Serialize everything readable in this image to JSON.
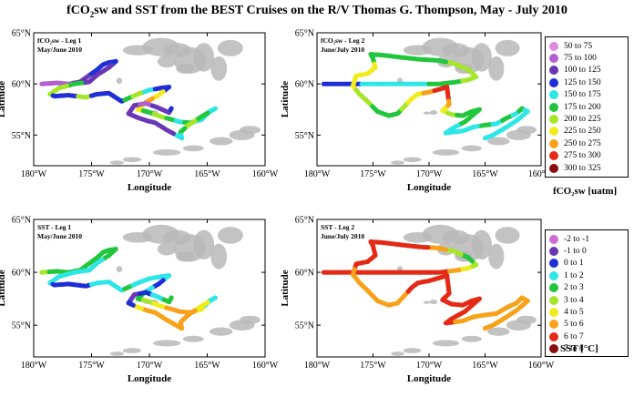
{
  "title": {
    "pre": "fCO",
    "sub": "2",
    "post": "sw and SST from the BEST Cruises on the R/V Thomas G. Thompson, May - July 2010"
  },
  "colors": {
    "land": "#b9b9b9",
    "frame": "#000000"
  },
  "fco2_legend": {
    "title": "fCO₂sw [uatm]",
    "items": [
      {
        "label": "50  to  75",
        "color": "#e08ae0"
      },
      {
        "label": "75  to  100",
        "color": "#b25fd0"
      },
      {
        "label": "100  to  125",
        "color": "#6a37b4"
      },
      {
        "label": "125  to  150",
        "color": "#1f2fd6"
      },
      {
        "label": "150  to  175",
        "color": "#2fe6e6"
      },
      {
        "label": "175  to  200",
        "color": "#22c63c"
      },
      {
        "label": "200  to  225",
        "color": "#a6e62a"
      },
      {
        "label": "225  to  250",
        "color": "#f2ec1c"
      },
      {
        "label": "250  to  275",
        "color": "#f7a21a"
      },
      {
        "label": "275  to  300",
        "color": "#e42a16"
      },
      {
        "label": "300  to  325",
        "color": "#8b0e0e"
      }
    ]
  },
  "sst_legend": {
    "title": "SST [°C]",
    "items": [
      {
        "label": "-2  to  -1",
        "color": "#cf6ad6"
      },
      {
        "label": "-1  to  0",
        "color": "#6a37b4"
      },
      {
        "label": "0  to  1",
        "color": "#1f2fd6"
      },
      {
        "label": "1  to  2",
        "color": "#2fe6e6"
      },
      {
        "label": "2  to  3",
        "color": "#22c63c"
      },
      {
        "label": "3  to  4",
        "color": "#a6e62a"
      },
      {
        "label": "4  to  5",
        "color": "#f2ec1c"
      },
      {
        "label": "5  to  6",
        "color": "#f7a21a"
      },
      {
        "label": "6  to  7",
        "color": "#e42a16"
      },
      {
        "label": "7  to  8",
        "color": "#8b0e0e"
      }
    ]
  },
  "chart_data": [
    {
      "type": "scatter",
      "variable": "fCO2sw",
      "panel_label": [
        "fCO₂sw - Leg 1",
        "May/June 2010"
      ],
      "xlabel": "Longitude",
      "ylabel": "Latitude",
      "xlim": [
        -180,
        -160
      ],
      "ylim": [
        52,
        65
      ],
      "xticks": [
        {
          "v": -180,
          "t": "180°W"
        },
        {
          "v": -175,
          "t": "175°W"
        },
        {
          "v": -170,
          "t": "170°W"
        },
        {
          "v": -165,
          "t": "165°W"
        },
        {
          "v": -160,
          "t": "160°W"
        }
      ],
      "yticks": [
        {
          "v": 55,
          "t": "55°N"
        },
        {
          "v": 60,
          "t": "60°N"
        },
        {
          "v": 65,
          "t": "65°N"
        }
      ],
      "track": [
        [
          -179.3,
          60.0,
          90
        ],
        [
          -178.0,
          60.1,
          85
        ],
        [
          -177.0,
          60.0,
          95
        ],
        [
          -176.0,
          60.2,
          110
        ],
        [
          -175.5,
          60.6,
          120
        ],
        [
          -174.5,
          61.4,
          130
        ],
        [
          -174.0,
          61.9,
          140
        ],
        [
          -173.5,
          62.1,
          130
        ],
        [
          -172.9,
          62.2,
          135
        ],
        [
          -173.5,
          61.6,
          120
        ],
        [
          -174.5,
          60.9,
          115
        ],
        [
          -175.2,
          60.2,
          110
        ],
        [
          -176.5,
          60.0,
          190
        ],
        [
          -177.8,
          59.6,
          220
        ],
        [
          -178.6,
          59.0,
          210
        ],
        [
          -178.2,
          58.8,
          140
        ],
        [
          -177.0,
          58.9,
          130
        ],
        [
          -175.5,
          58.7,
          200
        ],
        [
          -174.5,
          59.0,
          135
        ],
        [
          -173.5,
          59.1,
          140
        ],
        [
          -172.4,
          58.3,
          135
        ],
        [
          -172.0,
          58.5,
          190
        ],
        [
          -171.0,
          59.0,
          200
        ],
        [
          -170.0,
          59.4,
          150
        ],
        [
          -169.0,
          59.6,
          140
        ],
        [
          -168.3,
          59.7,
          130
        ],
        [
          -169.2,
          58.9,
          240
        ],
        [
          -170.3,
          58.2,
          260
        ],
        [
          -171.0,
          57.5,
          230
        ],
        [
          -170.2,
          57.3,
          180
        ],
        [
          -169.0,
          56.8,
          220
        ],
        [
          -168.0,
          56.5,
          190
        ],
        [
          -167.4,
          56.3,
          170
        ],
        [
          -166.5,
          56.2,
          190
        ],
        [
          -165.5,
          56.5,
          150
        ],
        [
          -164.8,
          57.3,
          160
        ],
        [
          -164.3,
          57.6,
          150
        ],
        [
          -165.5,
          56.8,
          190
        ],
        [
          -166.6,
          56.0,
          200
        ],
        [
          -167.3,
          55.3,
          175
        ],
        [
          -167.2,
          54.7,
          160
        ],
        [
          -168.5,
          55.5,
          120
        ],
        [
          -169.5,
          56.2,
          100
        ],
        [
          -170.2,
          56.4,
          110
        ],
        [
          -171.0,
          56.7,
          115
        ],
        [
          -171.8,
          57.1,
          105
        ],
        [
          -171.3,
          57.9,
          100
        ],
        [
          -170.3,
          58.1,
          95
        ],
        [
          -169.3,
          57.7,
          110
        ],
        [
          -168.3,
          57.2,
          120
        ],
        [
          -168.1,
          57.6,
          130
        ]
      ]
    },
    {
      "type": "scatter",
      "variable": "fCO2sw",
      "panel_label": [
        "fCO₂sw - Leg 2",
        "June/July 2010"
      ],
      "xlabel": "Longitude",
      "ylabel": "Latitude",
      "xlim": [
        -180,
        -160
      ],
      "ylim": [
        52,
        65
      ],
      "xticks": [
        {
          "v": -180,
          "t": "180°W"
        },
        {
          "v": -175,
          "t": "175°W"
        },
        {
          "v": -170,
          "t": "170°W"
        },
        {
          "v": -165,
          "t": "165°W"
        },
        {
          "v": -160,
          "t": "160°W"
        }
      ],
      "yticks": [
        {
          "v": 55,
          "t": "55°N"
        },
        {
          "v": 60,
          "t": "60°N"
        },
        {
          "v": 65,
          "t": "65°N"
        }
      ],
      "track": [
        [
          -179.4,
          60.0,
          130
        ],
        [
          -177.0,
          60.0,
          140
        ],
        [
          -175.0,
          60.0,
          150
        ],
        [
          -173.0,
          60.0,
          160
        ],
        [
          -171.0,
          60.0,
          165
        ],
        [
          -169.0,
          60.0,
          175
        ],
        [
          -167.5,
          60.2,
          185
        ],
        [
          -166.5,
          60.4,
          200
        ],
        [
          -165.8,
          60.7,
          210
        ],
        [
          -166.5,
          61.4,
          215
        ],
        [
          -167.8,
          62.0,
          205
        ],
        [
          -169.2,
          62.3,
          195
        ],
        [
          -170.8,
          62.4,
          190
        ],
        [
          -172.5,
          62.6,
          185
        ],
        [
          -174.0,
          62.8,
          180
        ],
        [
          -175.2,
          62.9,
          175
        ],
        [
          -175.0,
          62.5,
          190
        ],
        [
          -174.8,
          61.6,
          230
        ],
        [
          -175.5,
          61.0,
          240
        ],
        [
          -176.5,
          60.8,
          245
        ],
        [
          -176.8,
          59.8,
          230
        ],
        [
          -176.2,
          59.0,
          220
        ],
        [
          -175.5,
          58.3,
          210
        ],
        [
          -174.6,
          57.3,
          185
        ],
        [
          -173.6,
          56.9,
          180
        ],
        [
          -172.8,
          57.1,
          190
        ],
        [
          -172.2,
          57.8,
          210
        ],
        [
          -171.5,
          58.6,
          230
        ],
        [
          -171.0,
          59.0,
          245
        ],
        [
          -170.0,
          59.2,
          270
        ],
        [
          -169.0,
          59.5,
          285
        ],
        [
          -168.4,
          59.7,
          290
        ],
        [
          -168.3,
          58.8,
          280
        ],
        [
          -168.2,
          58.0,
          260
        ],
        [
          -168.8,
          57.4,
          230
        ],
        [
          -168.0,
          57.0,
          205
        ],
        [
          -167.0,
          56.9,
          195
        ],
        [
          -166.2,
          57.3,
          190
        ],
        [
          -165.5,
          57.5,
          185
        ],
        [
          -166.8,
          56.3,
          180
        ],
        [
          -168.0,
          55.6,
          170
        ],
        [
          -168.5,
          55.2,
          160
        ],
        [
          -167.0,
          55.4,
          165
        ],
        [
          -166.0,
          55.8,
          170
        ],
        [
          -164.8,
          56.0,
          175
        ],
        [
          -164.0,
          56.1,
          170
        ],
        [
          -163.0,
          56.7,
          175
        ],
        [
          -162.2,
          57.1,
          170
        ],
        [
          -161.7,
          57.6,
          180
        ],
        [
          -161.2,
          57.3,
          170
        ],
        [
          -162.2,
          56.4,
          165
        ],
        [
          -163.2,
          55.7,
          160
        ],
        [
          -164.3,
          55.0,
          160
        ],
        [
          -165.0,
          54.7,
          160
        ]
      ]
    },
    {
      "type": "scatter",
      "variable": "SST",
      "panel_label": [
        "SST - Leg 1",
        "May/June 2010"
      ],
      "xlabel": "Longitude",
      "ylabel": "Latitude",
      "xlim": [
        -180,
        -160
      ],
      "ylim": [
        52,
        65
      ],
      "xticks": [
        {
          "v": -180,
          "t": "180°W"
        },
        {
          "v": -175,
          "t": "175°W"
        },
        {
          "v": -170,
          "t": "170°W"
        },
        {
          "v": -165,
          "t": "165°W"
        },
        {
          "v": -160,
          "t": "160°W"
        }
      ],
      "yticks": [
        {
          "v": 55,
          "t": "55°N"
        },
        {
          "v": 60,
          "t": "60°N"
        },
        {
          "v": 65,
          "t": "65°N"
        }
      ],
      "track": [
        [
          -179.3,
          60.0,
          3.5
        ],
        [
          -178.0,
          60.1,
          2.5
        ],
        [
          -177.0,
          60.0,
          2.5
        ],
        [
          -176.0,
          60.2,
          2.5
        ],
        [
          -175.5,
          60.6,
          2.5
        ],
        [
          -174.5,
          61.4,
          2.5
        ],
        [
          -174.0,
          61.9,
          2.5
        ],
        [
          -173.5,
          62.1,
          2.5
        ],
        [
          -172.9,
          62.2,
          2.5
        ],
        [
          -173.5,
          61.6,
          2.5
        ],
        [
          -174.5,
          60.9,
          1.5
        ],
        [
          -175.2,
          60.2,
          1.5
        ],
        [
          -176.5,
          60.0,
          1.5
        ],
        [
          -177.8,
          59.6,
          1.5
        ],
        [
          -178.6,
          59.0,
          1.5
        ],
        [
          -178.2,
          58.8,
          0.5
        ],
        [
          -177.0,
          58.9,
          0.5
        ],
        [
          -175.5,
          58.7,
          0.5
        ],
        [
          -174.5,
          59.0,
          1.5
        ],
        [
          -173.5,
          59.1,
          1.5
        ],
        [
          -172.4,
          58.3,
          1.5
        ],
        [
          -172.0,
          58.5,
          2.5
        ],
        [
          -171.0,
          59.0,
          1.5
        ],
        [
          -170.0,
          59.4,
          1.5
        ],
        [
          -169.0,
          59.6,
          1.5
        ],
        [
          -168.3,
          59.7,
          1.5
        ],
        [
          -169.2,
          58.9,
          0.5
        ],
        [
          -170.3,
          58.2,
          1.5
        ],
        [
          -171.0,
          57.5,
          2.5
        ],
        [
          -170.2,
          57.3,
          3.5
        ],
        [
          -169.0,
          56.8,
          4.5
        ],
        [
          -168.0,
          56.5,
          5.5
        ],
        [
          -167.4,
          56.3,
          5.5
        ],
        [
          -166.5,
          56.2,
          5.5
        ],
        [
          -165.5,
          56.5,
          4.5
        ],
        [
          -164.8,
          57.3,
          1.5
        ],
        [
          -164.3,
          57.6,
          1.5
        ],
        [
          -165.5,
          56.8,
          4.5
        ],
        [
          -166.6,
          56.0,
          5.5
        ],
        [
          -167.3,
          55.3,
          5.5
        ],
        [
          -167.2,
          54.7,
          5.5
        ],
        [
          -168.5,
          55.5,
          5.5
        ],
        [
          -169.5,
          56.2,
          5.5
        ],
        [
          -170.2,
          56.4,
          5.5
        ],
        [
          -171.0,
          56.7,
          4.5
        ],
        [
          -171.8,
          57.1,
          0.5
        ],
        [
          -171.3,
          57.9,
          -0.5
        ],
        [
          -170.3,
          58.1,
          0.5
        ],
        [
          -169.3,
          57.7,
          1.5
        ],
        [
          -168.3,
          57.2,
          2.5
        ],
        [
          -168.1,
          57.6,
          2.5
        ]
      ]
    },
    {
      "type": "scatter",
      "variable": "SST",
      "panel_label": [
        "SST - Leg 2",
        "June/July 2010"
      ],
      "xlabel": "Longitude",
      "ylabel": "Latitude",
      "xlim": [
        -180,
        -160
      ],
      "ylim": [
        52,
        65
      ],
      "xticks": [
        {
          "v": -180,
          "t": "180°W"
        },
        {
          "v": -175,
          "t": "175°W"
        },
        {
          "v": -170,
          "t": "170°W"
        },
        {
          "v": -165,
          "t": "165°W"
        },
        {
          "v": -160,
          "t": "160°W"
        }
      ],
      "yticks": [
        {
          "v": 55,
          "t": "55°N"
        },
        {
          "v": 60,
          "t": "60°N"
        },
        {
          "v": 65,
          "t": "65°N"
        }
      ],
      "track": [
        [
          -179.4,
          60.0,
          6.5
        ],
        [
          -177.0,
          60.0,
          6.5
        ],
        [
          -175.0,
          60.0,
          6.5
        ],
        [
          -173.0,
          60.0,
          6.5
        ],
        [
          -171.0,
          60.0,
          6.5
        ],
        [
          -169.0,
          60.0,
          6.5
        ],
        [
          -167.5,
          60.2,
          5.5
        ],
        [
          -166.5,
          60.4,
          4.5
        ],
        [
          -165.8,
          60.7,
          3.5
        ],
        [
          -166.5,
          61.4,
          2.5
        ],
        [
          -167.8,
          62.0,
          3.5
        ],
        [
          -169.2,
          62.3,
          5.5
        ],
        [
          -170.8,
          62.4,
          6.5
        ],
        [
          -172.5,
          62.6,
          6.5
        ],
        [
          -174.0,
          62.8,
          6.5
        ],
        [
          -175.2,
          62.9,
          6.5
        ],
        [
          -175.0,
          62.5,
          6.5
        ],
        [
          -174.8,
          61.6,
          6.5
        ],
        [
          -175.5,
          61.0,
          6.5
        ],
        [
          -176.5,
          60.8,
          6.5
        ],
        [
          -176.8,
          59.8,
          5.5
        ],
        [
          -176.2,
          59.0,
          5.5
        ],
        [
          -175.5,
          58.3,
          5.5
        ],
        [
          -174.6,
          57.3,
          5.5
        ],
        [
          -173.6,
          56.9,
          5.5
        ],
        [
          -172.8,
          57.1,
          5.5
        ],
        [
          -172.2,
          57.8,
          5.5
        ],
        [
          -171.5,
          58.6,
          6.5
        ],
        [
          -171.0,
          59.0,
          6.5
        ],
        [
          -170.0,
          59.2,
          6.5
        ],
        [
          -169.0,
          59.5,
          6.5
        ],
        [
          -168.4,
          59.7,
          6.5
        ],
        [
          -168.3,
          58.8,
          6.5
        ],
        [
          -168.2,
          58.0,
          6.5
        ],
        [
          -168.8,
          57.4,
          6.5
        ],
        [
          -168.0,
          57.0,
          6.5
        ],
        [
          -167.0,
          56.9,
          6.5
        ],
        [
          -166.2,
          57.3,
          6.5
        ],
        [
          -165.5,
          57.5,
          6.5
        ],
        [
          -166.8,
          56.3,
          6.5
        ],
        [
          -168.0,
          55.6,
          6.5
        ],
        [
          -168.5,
          55.2,
          6.5
        ],
        [
          -167.0,
          55.4,
          5.5
        ],
        [
          -166.0,
          55.8,
          5.5
        ],
        [
          -164.8,
          56.0,
          5.5
        ],
        [
          -164.0,
          56.1,
          5.5
        ],
        [
          -163.0,
          56.7,
          5.5
        ],
        [
          -162.2,
          57.1,
          5.5
        ],
        [
          -161.7,
          57.6,
          5.5
        ],
        [
          -161.2,
          57.3,
          5.5
        ],
        [
          -162.2,
          56.4,
          5.5
        ],
        [
          -163.2,
          55.7,
          5.5
        ],
        [
          -164.3,
          55.0,
          5.5
        ],
        [
          -165.0,
          54.7,
          5.5
        ]
      ]
    }
  ]
}
